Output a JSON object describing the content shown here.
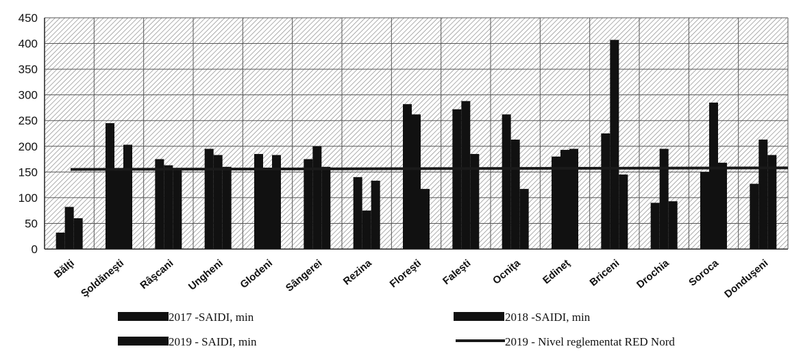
{
  "chart_data": {
    "type": "bar",
    "title": "",
    "xlabel": "",
    "ylabel": "",
    "ylim": [
      0,
      450
    ],
    "yticks": [
      0,
      50,
      100,
      150,
      200,
      250,
      300,
      350,
      400,
      450
    ],
    "grid": true,
    "legend_position": "bottom",
    "categories": [
      "Bălţi",
      "Şoldăneşti",
      "Râşcani",
      "Ungheni",
      "Glodeni",
      "Sângerei",
      "Rezina",
      "Floreşti",
      "Faleşti",
      "Ocniţa",
      "Edineţ",
      "Briceni",
      "Drochia",
      "Soroca",
      "Donduşeni"
    ],
    "series": [
      {
        "name": "2017 -SAIDI, min",
        "values": [
          32,
          245,
          175,
          195,
          185,
          175,
          140,
          282,
          272,
          262,
          180,
          225,
          90,
          150,
          127
        ]
      },
      {
        "name": "2018 -SAIDI, min",
        "values": [
          82,
          155,
          163,
          183,
          158,
          200,
          75,
          262,
          288,
          213,
          193,
          407,
          195,
          285,
          213
        ]
      },
      {
        "name": "2019 - SAIDI, min",
        "values": [
          60,
          203,
          155,
          160,
          183,
          160,
          133,
          117,
          185,
          117,
          195,
          145,
          93,
          168,
          183
        ]
      }
    ],
    "reference_line": {
      "name": "2019 - Nivel reglementat RED Nord",
      "start_value": 155,
      "end_value": 158
    },
    "colors": {
      "bars": "#111111",
      "line": "#1a1a1a",
      "hatch": "#8a8a8a"
    }
  }
}
